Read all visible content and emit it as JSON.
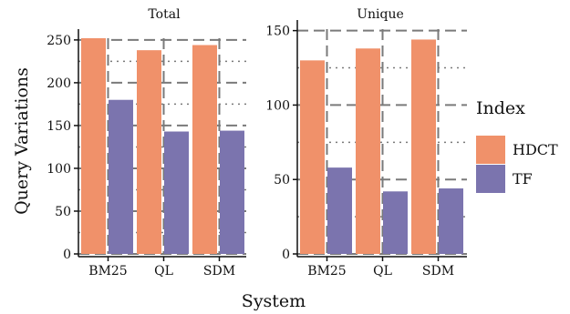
{
  "chart_data": [
    {
      "type": "bar",
      "title": "Total",
      "categories": [
        "BM25",
        "QL",
        "SDM"
      ],
      "series": [
        {
          "name": "HDCT",
          "values": [
            252,
            238,
            244
          ]
        },
        {
          "name": "TF",
          "values": [
            180,
            143,
            144
          ]
        }
      ],
      "ylim": [
        0,
        252
      ],
      "yticks": [
        0,
        50,
        100,
        150,
        200,
        250
      ],
      "ylabel": "Query Variations",
      "xlabel": "System"
    },
    {
      "type": "bar",
      "title": "Unique",
      "categories": [
        "BM25",
        "QL",
        "SDM"
      ],
      "series": [
        {
          "name": "HDCT",
          "values": [
            130,
            138,
            144
          ]
        },
        {
          "name": "TF",
          "values": [
            58,
            42,
            44
          ]
        }
      ],
      "ylim": [
        0,
        151
      ],
      "yticks": [
        0,
        50,
        100,
        150
      ],
      "xlabel": "System"
    }
  ],
  "legend": {
    "title": "Index",
    "items": [
      {
        "label": "HDCT",
        "color": "#F0916A"
      },
      {
        "label": "TF",
        "color": "#7B74AE"
      }
    ]
  },
  "axis_titles": {
    "y": "Query Variations",
    "x": "System"
  },
  "colors": {
    "grid": "#7a7a7a",
    "axis": "#111111"
  }
}
